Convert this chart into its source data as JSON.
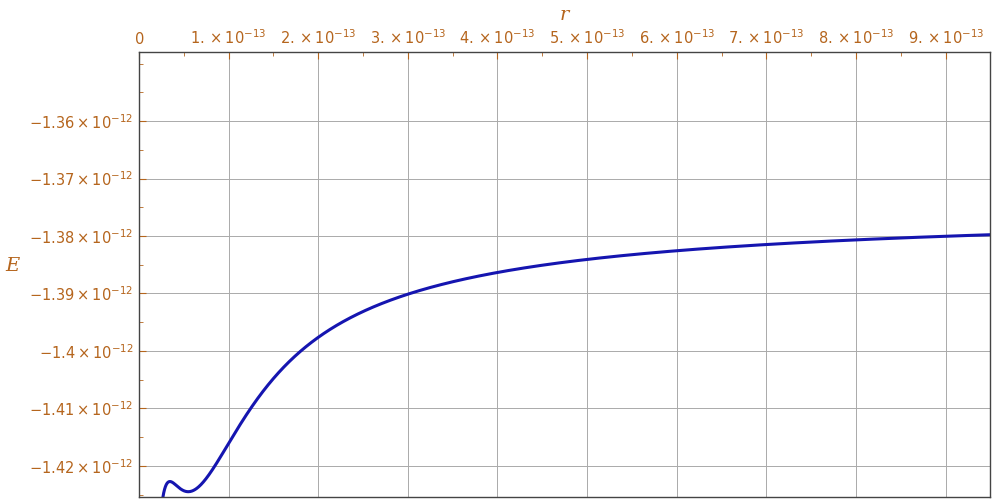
{
  "xlabel": "r",
  "ylabel": "E",
  "xmin": 0,
  "xmax": 9.5e-13,
  "ymin": -1.4255e-12,
  "ymax": -1.348e-12,
  "xticks": [
    0,
    1e-13,
    2e-13,
    3e-13,
    4e-13,
    5e-13,
    6e-13,
    7e-13,
    8e-13,
    9e-13
  ],
  "yticks": [
    -1.36e-12,
    -1.37e-12,
    -1.38e-12,
    -1.39e-12,
    -1.4e-12,
    -1.41e-12,
    -1.42e-12
  ],
  "line_color": "#1515b0",
  "line_width": 2.2,
  "background_color": "#ffffff",
  "grid_color": "#aaaaaa",
  "text_color": "#b5651d",
  "E_inf": -1.375e-12,
  "E_min": -1.4245e-12,
  "r_min_val": 5.5e-14,
  "nuclear_decay": 2.2e-14
}
